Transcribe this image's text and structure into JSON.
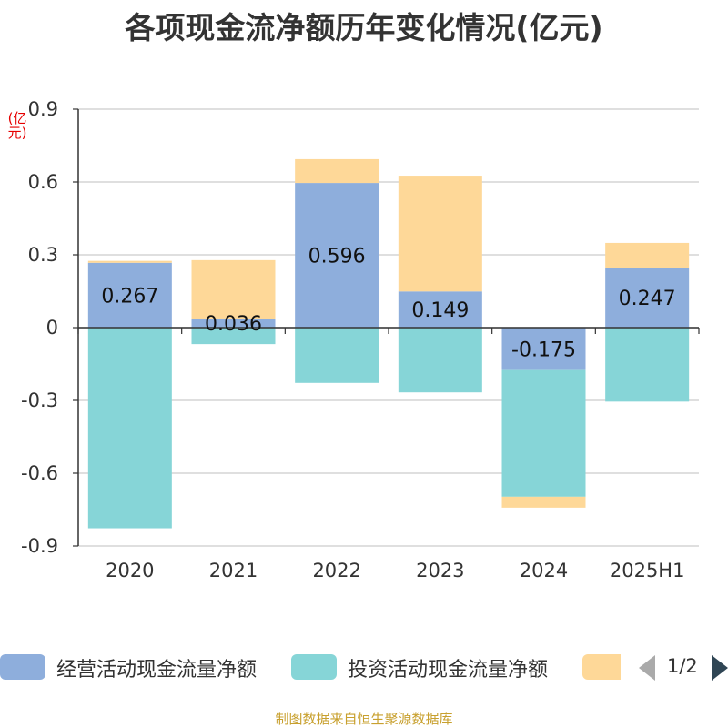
{
  "chart_data": {
    "type": "bar",
    "stacked": true,
    "title": "各项现金流净额历年变化情况(亿元)",
    "ylabel": "(亿元)",
    "xlabel": "",
    "categories": [
      "2020",
      "2021",
      "2022",
      "2023",
      "2024",
      "2025H1"
    ],
    "ylim": [
      -0.9,
      0.9
    ],
    "yticks": [
      0.9,
      0.6,
      0.3,
      0,
      -0.3,
      -0.6,
      -0.9
    ],
    "ytick_labels": [
      "0.9",
      "0.6",
      "0.3",
      "0",
      "-0.3",
      "-0.6",
      "-0.9"
    ],
    "grid": true,
    "legend_position": "bottom",
    "series": [
      {
        "name": "经营活动现金流量净额",
        "color": "#8eaedc",
        "values": [
          0.267,
          0.036,
          0.596,
          0.149,
          -0.175,
          0.247
        ],
        "labels": [
          "0.267",
          "0.036",
          "0.596",
          "0.149",
          "-0.175",
          "0.247"
        ]
      },
      {
        "name": "投资活动现金流量净额",
        "color": "#86d5d7",
        "values": [
          -0.827,
          -0.068,
          -0.228,
          -0.267,
          -0.522,
          -0.305
        ]
      },
      {
        "name": "",
        "color": "#fed898",
        "values": [
          0.008,
          0.242,
          0.098,
          0.477,
          -0.045,
          0.102
        ]
      }
    ]
  },
  "legend": {
    "items": [
      {
        "label": "经营活动现金流量净额",
        "color": "#8eaedc"
      },
      {
        "label": "投资活动现金流量净额",
        "color": "#86d5d7"
      },
      {
        "label": "",
        "color": "#fed898"
      }
    ],
    "page_indicator": "1/2"
  },
  "source_note": "制图数据来自恒生聚源数据库"
}
